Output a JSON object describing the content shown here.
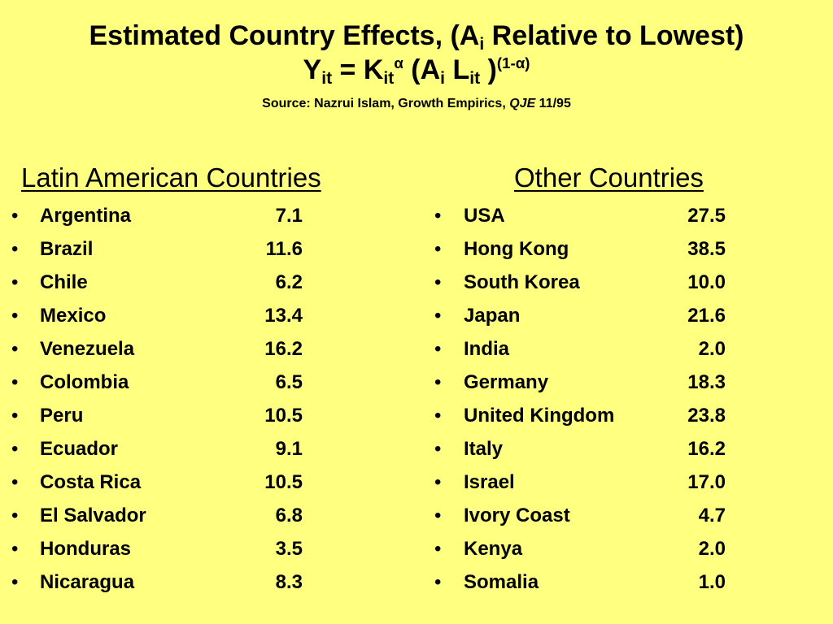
{
  "title": {
    "line1_text": "Estimated Country Effects, (A",
    "line1_sub": "i",
    "line1_end": " Relative to Lowest)",
    "eq_Y": "Y",
    "eq_Y_sub": "it",
    "eq_equals_K": " = K",
    "eq_K_sub": "it",
    "eq_K_sup": "α",
    "eq_open_A": " (A",
    "eq_A_sub": "i",
    "eq_L": " L",
    "eq_L_sub": "it",
    "eq_close": " )",
    "eq_exp": "(1-α)"
  },
  "source": {
    "prefix": "Source: Nazrui Islam, Growth Empirics, ",
    "journal": "QJE",
    "suffix": " 11/95"
  },
  "latin_american": {
    "heading": "Latin American Countries",
    "bullet": "•",
    "items": [
      {
        "name": "Argentina",
        "value": "7.1"
      },
      {
        "name": "Brazil",
        "value": "11.6"
      },
      {
        "name": "Chile",
        "value": "6.2"
      },
      {
        "name": "Mexico",
        "value": "13.4"
      },
      {
        "name": "Venezuela",
        "value": "16.2"
      },
      {
        "name": "Colombia",
        "value": "6.5"
      },
      {
        "name": "Peru",
        "value": "10.5"
      },
      {
        "name": "Ecuador",
        "value": "9.1"
      },
      {
        "name": "Costa Rica",
        "value": "10.5"
      },
      {
        "name": "El Salvador",
        "value": "6.8"
      },
      {
        "name": "Honduras",
        "value": "3.5"
      },
      {
        "name": "Nicaragua",
        "value": "8.3"
      }
    ]
  },
  "other": {
    "heading": "Other Countries",
    "bullet": "•",
    "items": [
      {
        "name": "USA",
        "value": "27.5"
      },
      {
        "name": "Hong Kong",
        "value": "38.5"
      },
      {
        "name": "South Korea",
        "value": "10.0"
      },
      {
        "name": "Japan",
        "value": "21.6"
      },
      {
        "name": "India",
        "value": "2.0"
      },
      {
        "name": "Germany",
        "value": "18.3"
      },
      {
        "name": "United Kingdom",
        "value": "23.8"
      },
      {
        "name": "Italy",
        "value": "16.2"
      },
      {
        "name": "Israel",
        "value": "17.0"
      },
      {
        "name": "Ivory Coast",
        "value": "4.7"
      },
      {
        "name": "Kenya",
        "value": "2.0"
      },
      {
        "name": "Somalia",
        "value": "1.0"
      }
    ]
  },
  "colors": {
    "background": "#ffff80",
    "text": "#000000"
  }
}
